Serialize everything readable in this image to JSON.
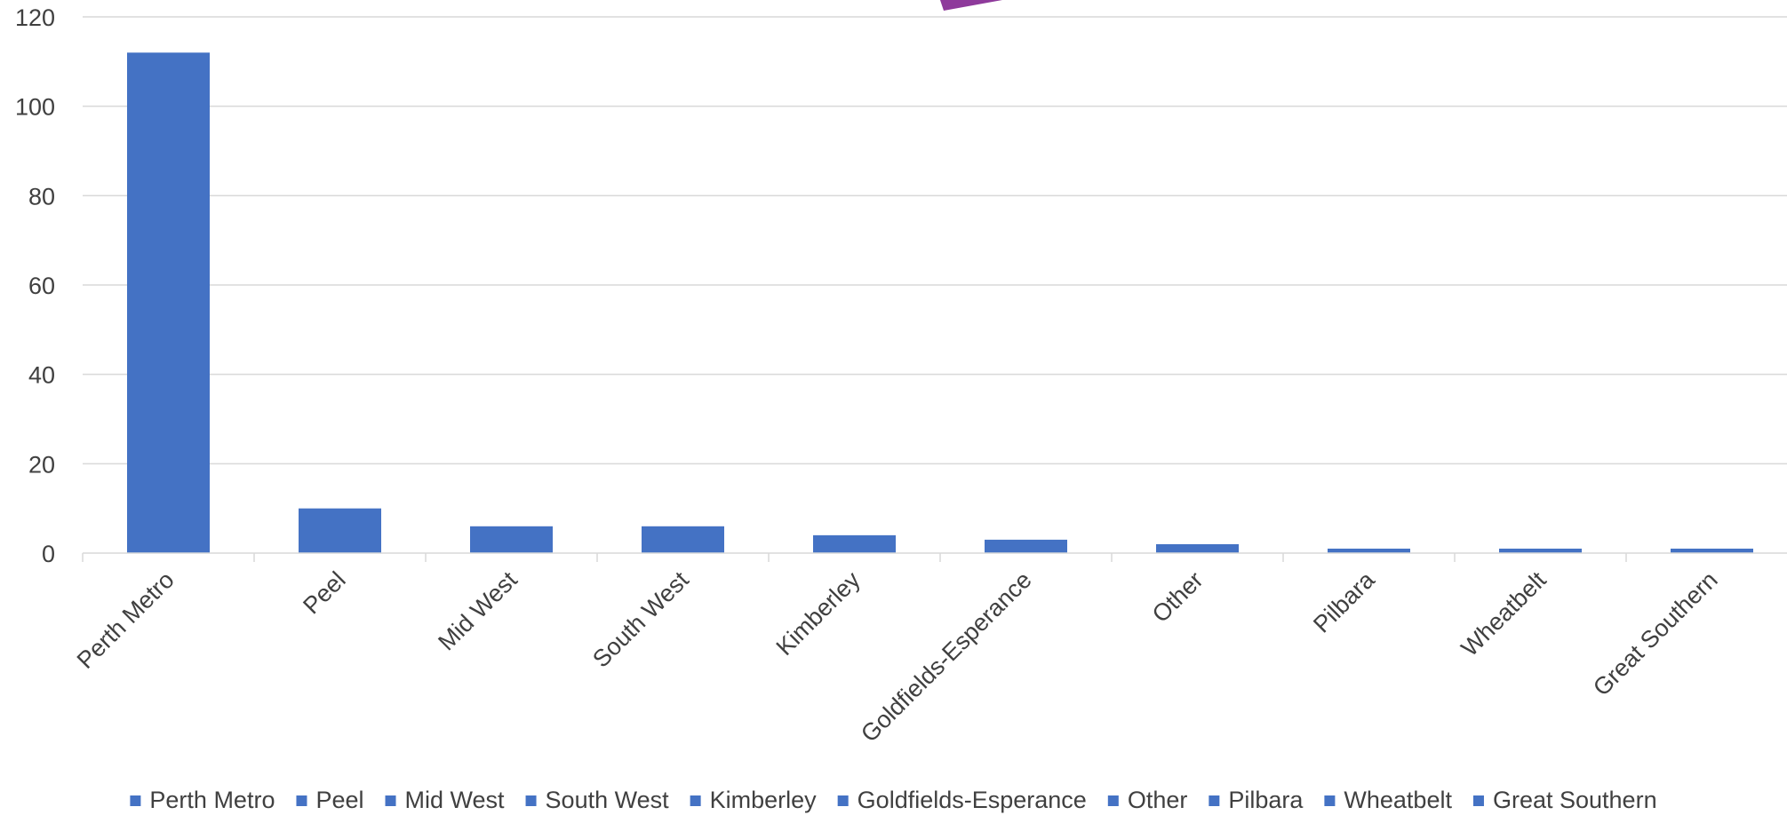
{
  "chart_data": {
    "type": "bar",
    "categories": [
      "Perth Metro",
      "Peel",
      "Mid West",
      "South West",
      "Kimberley",
      "Goldfields-Esperance",
      "Other",
      "Pilbara",
      "Wheatbelt",
      "Great Southern"
    ],
    "values": [
      112,
      10,
      6,
      6,
      4,
      3,
      2,
      1,
      1,
      1
    ],
    "ylim": [
      0,
      120
    ],
    "yticks": [
      0,
      20,
      40,
      60,
      80,
      100,
      120
    ],
    "ytick_labels": [
      "0",
      "20",
      "40",
      "60",
      "80",
      "100",
      "120"
    ],
    "grid": true,
    "legend_position": "bottom",
    "bar_color": "#4472C4",
    "gridline_color": "#D9D9D9",
    "text_color": "#404040",
    "partial_shape_color": "#8E3A9B"
  }
}
